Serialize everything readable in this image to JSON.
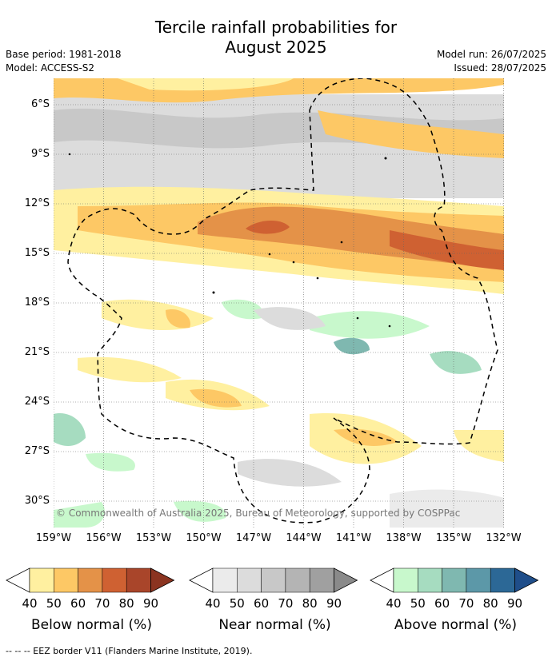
{
  "title_line1": "Tercile rainfall probabilities for",
  "title_line2": "August 2025",
  "meta_left": {
    "base_period": "Base period: 1981-2018",
    "model": "Model: ACCESS-S2"
  },
  "meta_right": {
    "model_run": "Model run: 26/07/2025",
    "issued": "Issued: 28/07/2025"
  },
  "lat_labels": [
    "6°S",
    "9°S",
    "12°S",
    "15°S",
    "18°S",
    "21°S",
    "24°S",
    "27°S",
    "30°S"
  ],
  "lon_labels": [
    "159°W",
    "156°W",
    "153°W",
    "150°W",
    "147°W",
    "144°W",
    "141°W",
    "138°W",
    "135°W",
    "132°W"
  ],
  "copyright": "© Commonwealth of Australia 2025, Bureau of Meteorology, supported by COSPPac",
  "colorbars": [
    {
      "label": "Below normal (%)",
      "ticks": [
        "40",
        "50",
        "60",
        "70",
        "80",
        "90"
      ],
      "colors": [
        "#ffffff",
        "#fff0a0",
        "#fdc865",
        "#e49248",
        "#cf6132",
        "#a9452a",
        "#8b3420"
      ]
    },
    {
      "label": "Near normal (%)",
      "ticks": [
        "40",
        "50",
        "60",
        "70",
        "80",
        "90"
      ],
      "colors": [
        "#ffffff",
        "#ebebeb",
        "#dcdcdc",
        "#c8c8c8",
        "#b4b4b4",
        "#a0a0a0",
        "#8a8a8a"
      ]
    },
    {
      "label": "Above normal (%)",
      "ticks": [
        "40",
        "50",
        "60",
        "70",
        "80",
        "90"
      ],
      "colors": [
        "#ffffff",
        "#c8f8cc",
        "#a6dcc0",
        "#7fb8b0",
        "#5c98a8",
        "#2c6896",
        "#1f4e8a"
      ]
    }
  ],
  "footer": "--  --  -- EEZ border V11 (Flanders Marine Institute, 2019).",
  "colors": {
    "grid": "#666666",
    "eez": "#000000"
  }
}
